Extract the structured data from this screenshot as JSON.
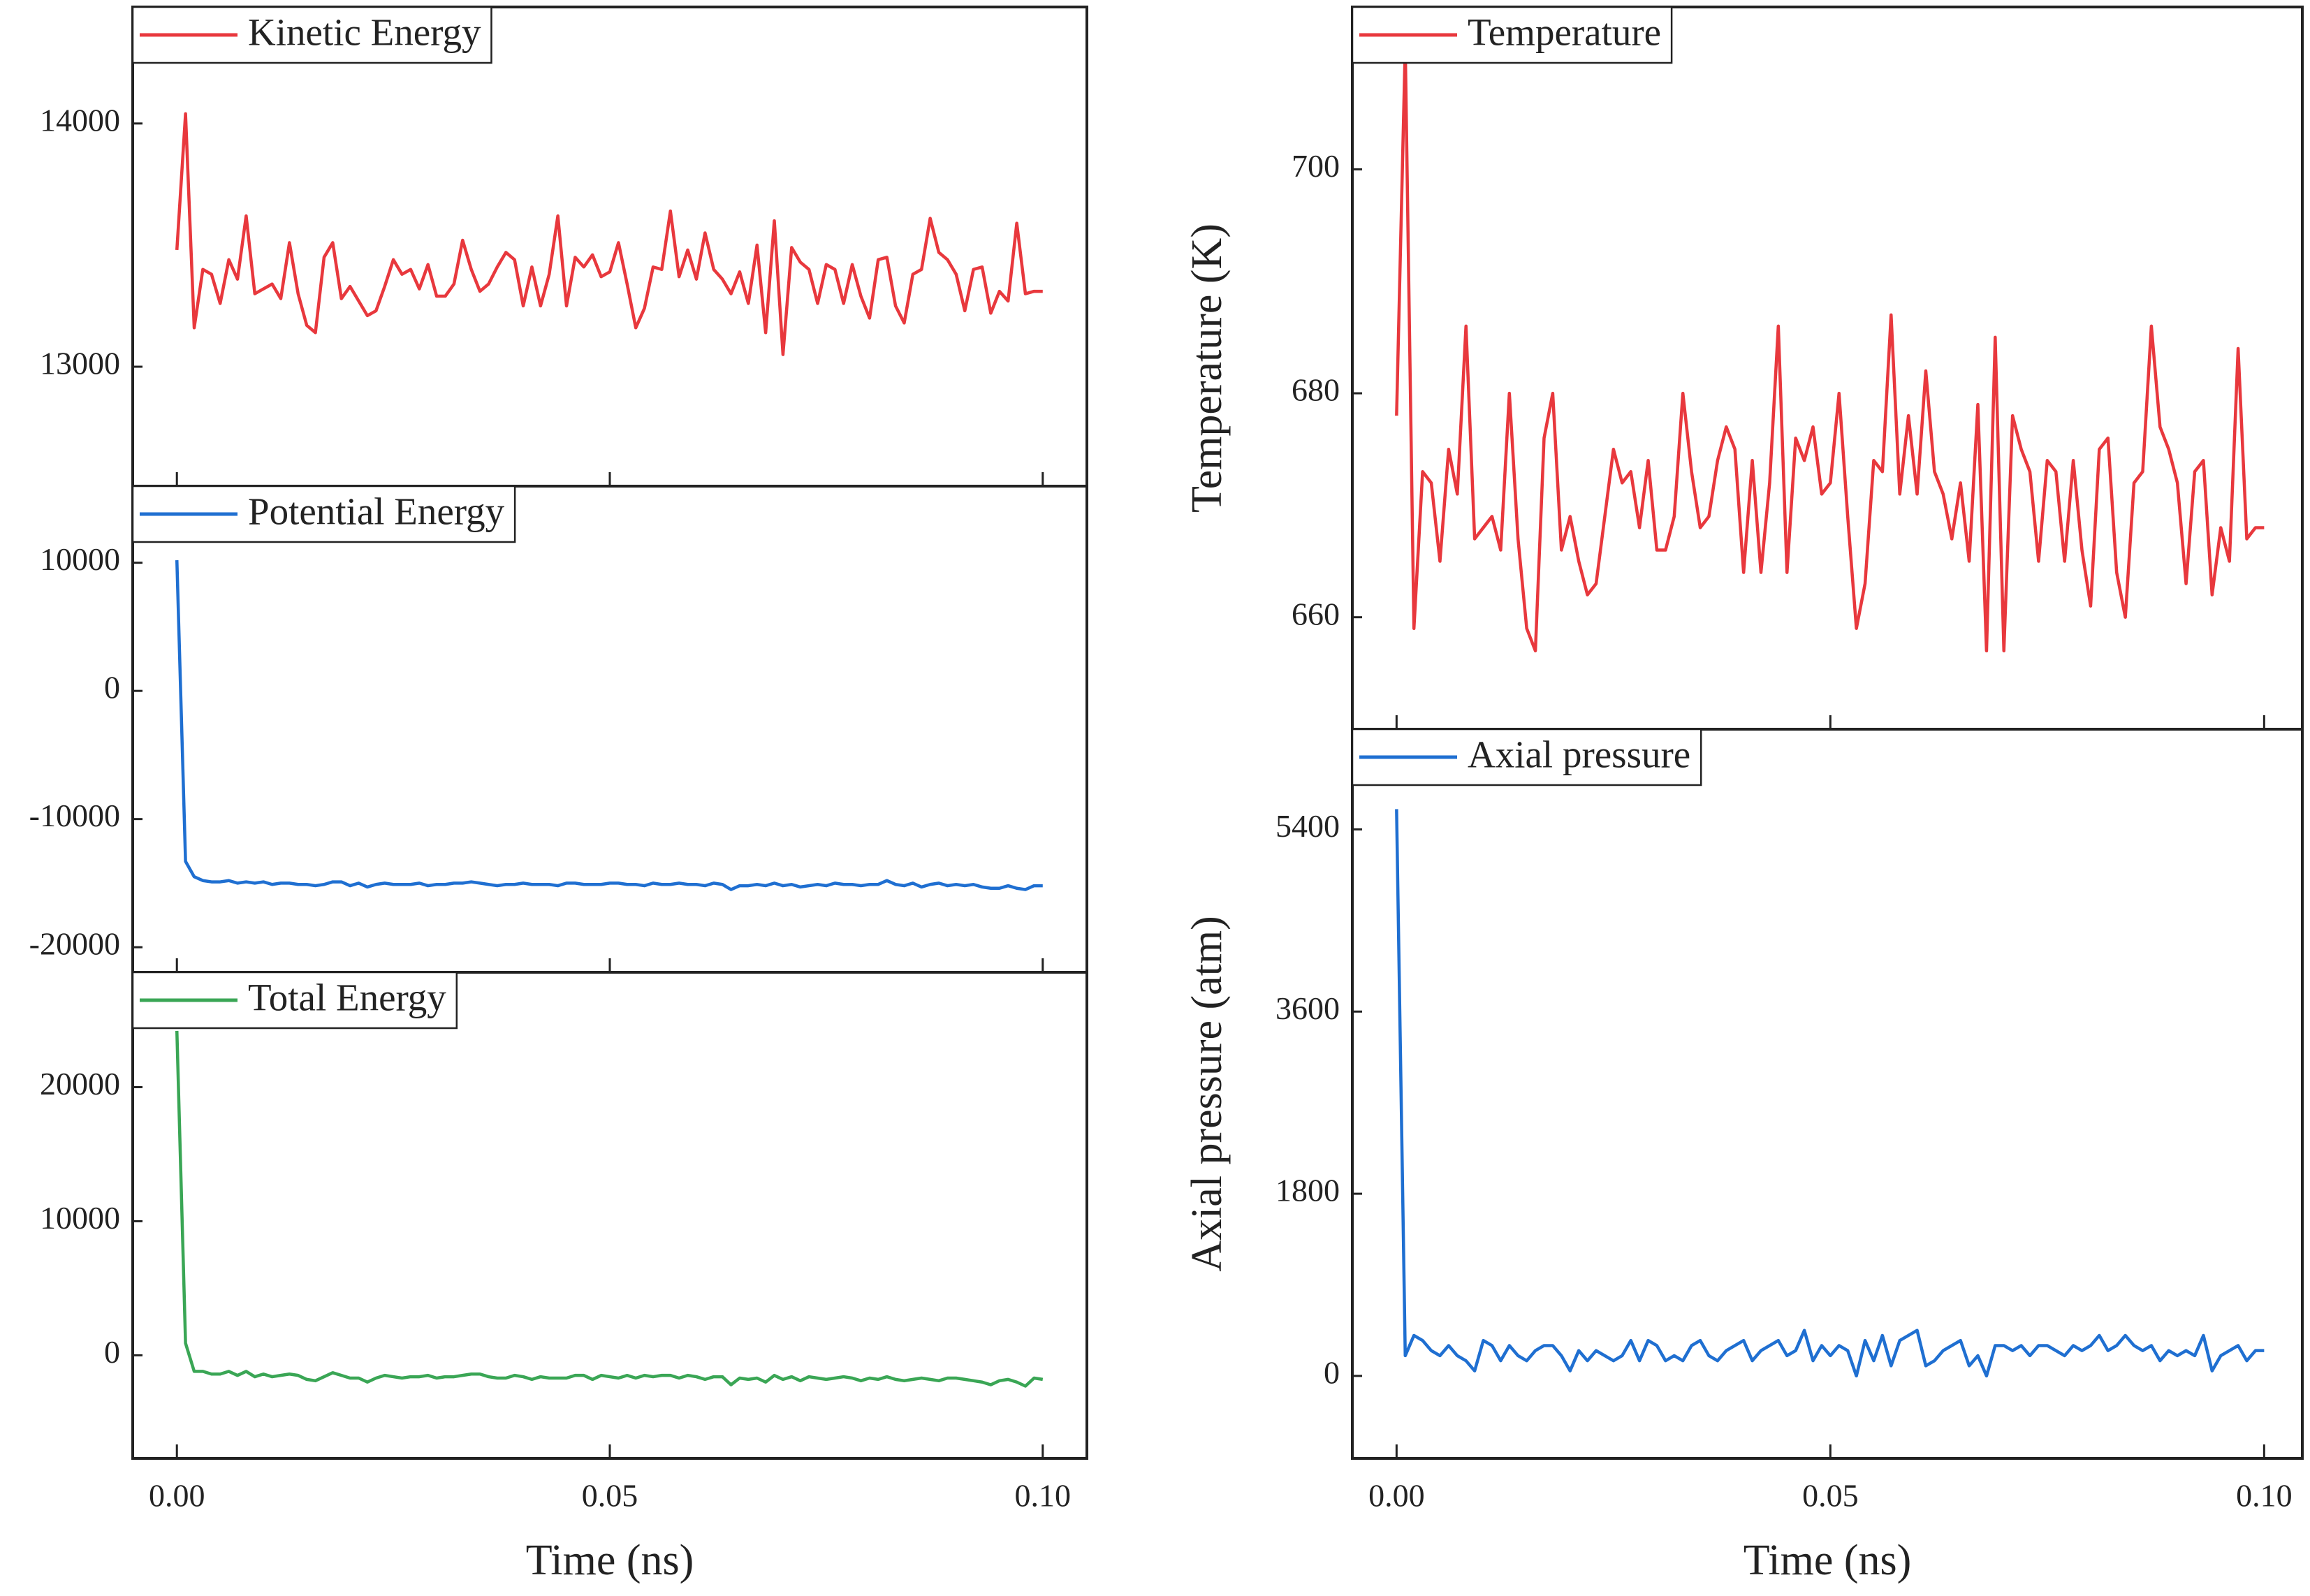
{
  "chart_data": [
    {
      "type": "line",
      "series": [
        {
          "name": "Kinetic Energy",
          "color": "#e8383d",
          "values": [
            13480,
            14040,
            13160,
            13400,
            13380,
            13260,
            13440,
            13360,
            13620,
            13300,
            13320,
            13340,
            13280,
            13510,
            13300,
            13170,
            13140,
            13450,
            13510,
            13280,
            13330,
            13270,
            13210,
            13230,
            13330,
            13440,
            13380,
            13400,
            13320,
            13420,
            13290,
            13290,
            13340,
            13520,
            13400,
            13310,
            13340,
            13410,
            13470,
            13440,
            13250,
            13410,
            13250,
            13380,
            13620,
            13250,
            13450,
            13410,
            13460,
            13370,
            13390,
            13510,
            13340,
            13160,
            13240,
            13410,
            13400,
            13640,
            13370,
            13480,
            13360,
            13550,
            13400,
            13360,
            13300,
            13390,
            13260,
            13500,
            13140,
            13600,
            13050,
            13490,
            13430,
            13400,
            13260,
            13420,
            13400,
            13260,
            13420,
            13290,
            13200,
            13440,
            13450,
            13250,
            13180,
            13380,
            13400,
            13610,
            13470,
            13440,
            13380,
            13230,
            13400,
            13410,
            13220,
            13310,
            13270,
            13590,
            13300,
            13310,
            13310
          ]
        }
      ],
      "x": [
        0,
        0.001,
        0.002,
        0.003,
        0.004,
        0.005,
        0.006,
        0.007,
        0.008,
        0.009,
        0.01,
        0.011,
        0.012,
        0.013,
        0.014,
        0.015,
        0.016,
        0.017,
        0.018,
        0.019,
        0.02,
        0.021,
        0.022,
        0.023,
        0.024,
        0.025,
        0.026,
        0.027,
        0.028,
        0.029,
        0.03,
        0.031,
        0.032,
        0.033,
        0.034,
        0.035,
        0.036,
        0.037,
        0.038,
        0.039,
        0.04,
        0.041,
        0.042,
        0.043,
        0.044,
        0.045,
        0.046,
        0.047,
        0.048,
        0.049,
        0.05,
        0.051,
        0.052,
        0.053,
        0.054,
        0.055,
        0.056,
        0.057,
        0.058,
        0.059,
        0.06,
        0.061,
        0.062,
        0.063,
        0.064,
        0.065,
        0.066,
        0.067,
        0.068,
        0.069,
        0.07,
        0.071,
        0.072,
        0.073,
        0.074,
        0.075,
        0.076,
        0.077,
        0.078,
        0.079,
        0.08,
        0.081,
        0.082,
        0.083,
        0.084,
        0.085,
        0.086,
        0.087,
        0.088,
        0.089,
        0.09,
        0.091,
        0.092,
        0.093,
        0.094,
        0.095,
        0.096,
        0.097,
        0.098,
        0.099,
        0.1
      ],
      "xlim": [
        -0.0051,
        0.1051
      ],
      "xticks": [
        0,
        0.05,
        0.1
      ],
      "ylim": [
        12509,
        14479
      ],
      "yticks": [
        13000,
        14000
      ]
    },
    {
      "type": "line",
      "series": [
        {
          "name": "Potential Energy",
          "color": "#1f6fd1",
          "values": [
            10200,
            -13300,
            -14500,
            -14800,
            -14900,
            -14900,
            -14800,
            -15000,
            -14900,
            -15000,
            -14900,
            -15100,
            -15000,
            -15000,
            -15100,
            -15100,
            -15200,
            -15100,
            -14900,
            -14900,
            -15200,
            -15000,
            -15300,
            -15100,
            -15000,
            -15100,
            -15100,
            -15100,
            -15000,
            -15200,
            -15100,
            -15100,
            -15000,
            -15000,
            -14900,
            -15000,
            -15100,
            -15200,
            -15100,
            -15100,
            -15000,
            -15100,
            -15100,
            -15100,
            -15200,
            -15000,
            -15000,
            -15100,
            -15100,
            -15100,
            -15000,
            -15000,
            -15100,
            -15100,
            -15200,
            -15000,
            -15100,
            -15100,
            -15000,
            -15100,
            -15100,
            -15200,
            -15000,
            -15100,
            -15500,
            -15200,
            -15200,
            -15100,
            -15200,
            -15000,
            -15200,
            -15100,
            -15300,
            -15200,
            -15100,
            -15200,
            -15000,
            -15100,
            -15100,
            -15200,
            -15100,
            -15100,
            -14800,
            -15100,
            -15200,
            -15000,
            -15300,
            -15100,
            -15000,
            -15200,
            -15100,
            -15200,
            -15100,
            -15300,
            -15400,
            -15400,
            -15200,
            -15400,
            -15500,
            -15200,
            -15200
          ]
        }
      ],
      "x": [
        0,
        0.001,
        0.002,
        0.003,
        0.004,
        0.005,
        0.006,
        0.007,
        0.008,
        0.009,
        0.01,
        0.011,
        0.012,
        0.013,
        0.014,
        0.015,
        0.016,
        0.017,
        0.018,
        0.019,
        0.02,
        0.021,
        0.022,
        0.023,
        0.024,
        0.025,
        0.026,
        0.027,
        0.028,
        0.029,
        0.03,
        0.031,
        0.032,
        0.033,
        0.034,
        0.035,
        0.036,
        0.037,
        0.038,
        0.039,
        0.04,
        0.041,
        0.042,
        0.043,
        0.044,
        0.045,
        0.046,
        0.047,
        0.048,
        0.049,
        0.05,
        0.051,
        0.052,
        0.053,
        0.054,
        0.055,
        0.056,
        0.057,
        0.058,
        0.059,
        0.06,
        0.061,
        0.062,
        0.063,
        0.064,
        0.065,
        0.066,
        0.067,
        0.068,
        0.069,
        0.07,
        0.071,
        0.072,
        0.073,
        0.074,
        0.075,
        0.076,
        0.077,
        0.078,
        0.079,
        0.08,
        0.081,
        0.082,
        0.083,
        0.084,
        0.085,
        0.086,
        0.087,
        0.088,
        0.089,
        0.09,
        0.091,
        0.092,
        0.093,
        0.094,
        0.095,
        0.096,
        0.097,
        0.098,
        0.099,
        0.1
      ],
      "xlim": [
        -0.0051,
        0.1051
      ],
      "xticks": [
        0,
        0.05,
        0.1
      ],
      "ylim": [
        -21954,
        15977
      ],
      "yticks": [
        -20000,
        -10000,
        0,
        10000
      ]
    },
    {
      "type": "line",
      "series": [
        {
          "name": "Total Energy",
          "color": "#3aa655",
          "values": [
            24200,
            900,
            -1200,
            -1200,
            -1400,
            -1400,
            -1200,
            -1500,
            -1200,
            -1600,
            -1400,
            -1600,
            -1500,
            -1400,
            -1500,
            -1800,
            -1900,
            -1600,
            -1300,
            -1500,
            -1700,
            -1700,
            -2000,
            -1700,
            -1500,
            -1600,
            -1700,
            -1600,
            -1600,
            -1500,
            -1700,
            -1600,
            -1600,
            -1500,
            -1400,
            -1400,
            -1600,
            -1700,
            -1700,
            -1500,
            -1600,
            -1800,
            -1600,
            -1700,
            -1700,
            -1700,
            -1500,
            -1500,
            -1800,
            -1500,
            -1600,
            -1700,
            -1500,
            -1700,
            -1500,
            -1600,
            -1500,
            -1500,
            -1700,
            -1500,
            -1600,
            -1800,
            -1600,
            -1600,
            -2200,
            -1700,
            -1800,
            -1700,
            -2000,
            -1500,
            -1800,
            -1600,
            -1900,
            -1600,
            -1700,
            -1800,
            -1700,
            -1600,
            -1700,
            -1900,
            -1700,
            -1800,
            -1600,
            -1800,
            -1900,
            -1800,
            -1700,
            -1800,
            -1900,
            -1700,
            -1700,
            -1800,
            -1900,
            -2000,
            -2200,
            -1900,
            -1800,
            -2000,
            -2300,
            -1700,
            -1800
          ]
        }
      ],
      "x": [
        0,
        0.001,
        0.002,
        0.003,
        0.004,
        0.005,
        0.006,
        0.007,
        0.008,
        0.009,
        0.01,
        0.011,
        0.012,
        0.013,
        0.014,
        0.015,
        0.016,
        0.017,
        0.018,
        0.019,
        0.02,
        0.021,
        0.022,
        0.023,
        0.024,
        0.025,
        0.026,
        0.027,
        0.028,
        0.029,
        0.03,
        0.031,
        0.032,
        0.033,
        0.034,
        0.035,
        0.036,
        0.037,
        0.038,
        0.039,
        0.04,
        0.041,
        0.042,
        0.043,
        0.044,
        0.045,
        0.046,
        0.047,
        0.048,
        0.049,
        0.05,
        0.051,
        0.052,
        0.053,
        0.054,
        0.055,
        0.056,
        0.057,
        0.058,
        0.059,
        0.06,
        0.061,
        0.062,
        0.063,
        0.064,
        0.065,
        0.066,
        0.067,
        0.068,
        0.069,
        0.07,
        0.071,
        0.072,
        0.073,
        0.074,
        0.075,
        0.076,
        0.077,
        0.078,
        0.079,
        0.08,
        0.081,
        0.082,
        0.083,
        0.084,
        0.085,
        0.086,
        0.087,
        0.088,
        0.089,
        0.09,
        0.091,
        0.092,
        0.093,
        0.094,
        0.095,
        0.096,
        0.097,
        0.098,
        0.099,
        0.1
      ],
      "xlim": [
        -0.0051,
        0.1051
      ],
      "xticks": [
        {
          "value": 0,
          "label": "0.00"
        },
        {
          "value": 0.05,
          "label": "0.05"
        },
        {
          "value": 0.1,
          "label": "0.10"
        }
      ],
      "ylim": [
        -7692,
        28571
      ],
      "yticks": [
        0,
        10000,
        20000
      ],
      "xlabel": "Time (ns)"
    },
    {
      "type": "line",
      "series": [
        {
          "name": "Temperature",
          "color": "#e8383d",
          "values": [
            678,
            711,
            659,
            673,
            672,
            665,
            675,
            671,
            686,
            667,
            668,
            669,
            666,
            680,
            667,
            659,
            657,
            676,
            680,
            666,
            669,
            665,
            662,
            663,
            669,
            675,
            672,
            673,
            668,
            674,
            666,
            666,
            669,
            680,
            673,
            668,
            669,
            674,
            677,
            675,
            664,
            674,
            664,
            672,
            686,
            664,
            676,
            674,
            677,
            671,
            672,
            680,
            669,
            659,
            663,
            674,
            673,
            687,
            671,
            678,
            671,
            682,
            673,
            671,
            667,
            672,
            665,
            679,
            657,
            685,
            657,
            678,
            675,
            673,
            665,
            674,
            673,
            665,
            674,
            666,
            661,
            675,
            676,
            664,
            660,
            672,
            673,
            686,
            677,
            675,
            672,
            663,
            673,
            674,
            662,
            668,
            665,
            684,
            667,
            668,
            668
          ]
        }
      ],
      "x": [
        0,
        0.001,
        0.002,
        0.003,
        0.004,
        0.005,
        0.006,
        0.007,
        0.008,
        0.009,
        0.01,
        0.011,
        0.012,
        0.013,
        0.014,
        0.015,
        0.016,
        0.017,
        0.018,
        0.019,
        0.02,
        0.021,
        0.022,
        0.023,
        0.024,
        0.025,
        0.026,
        0.027,
        0.028,
        0.029,
        0.03,
        0.031,
        0.032,
        0.033,
        0.034,
        0.035,
        0.036,
        0.037,
        0.038,
        0.039,
        0.04,
        0.041,
        0.042,
        0.043,
        0.044,
        0.045,
        0.046,
        0.047,
        0.048,
        0.049,
        0.05,
        0.051,
        0.052,
        0.053,
        0.054,
        0.055,
        0.056,
        0.057,
        0.058,
        0.059,
        0.06,
        0.061,
        0.062,
        0.063,
        0.064,
        0.065,
        0.066,
        0.067,
        0.068,
        0.069,
        0.07,
        0.071,
        0.072,
        0.073,
        0.074,
        0.075,
        0.076,
        0.077,
        0.078,
        0.079,
        0.08,
        0.081,
        0.082,
        0.083,
        0.084,
        0.085,
        0.086,
        0.087,
        0.088,
        0.089,
        0.09,
        0.091,
        0.092,
        0.093,
        0.094,
        0.095,
        0.096,
        0.097,
        0.098,
        0.099,
        0.1
      ],
      "xlim": [
        -0.0051,
        0.1044
      ],
      "xticks": [
        0,
        0.05,
        0.1
      ],
      "ylim": [
        650,
        714.5
      ],
      "yticks": [
        660,
        680,
        700
      ],
      "ylabel": "Temperature (K)"
    },
    {
      "type": "line",
      "series": [
        {
          "name": "Axial pressure",
          "color": "#1f6fd1",
          "values": [
            5600,
            200,
            400,
            350,
            250,
            200,
            300,
            200,
            150,
            50,
            350,
            300,
            150,
            300,
            200,
            150,
            250,
            300,
            300,
            200,
            50,
            250,
            150,
            250,
            200,
            150,
            200,
            350,
            150,
            350,
            300,
            150,
            200,
            150,
            300,
            350,
            200,
            150,
            250,
            300,
            350,
            150,
            250,
            300,
            350,
            200,
            250,
            450,
            150,
            300,
            200,
            300,
            250,
            0,
            350,
            150,
            400,
            100,
            350,
            400,
            450,
            100,
            150,
            250,
            300,
            350,
            100,
            200,
            0,
            300,
            300,
            250,
            300,
            200,
            300,
            300,
            250,
            200,
            300,
            250,
            300,
            400,
            250,
            300,
            400,
            300,
            250,
            300,
            150,
            250,
            200,
            250,
            200,
            400,
            50,
            200,
            250,
            300,
            150,
            250,
            250
          ]
        }
      ],
      "x": [
        0,
        0.001,
        0.002,
        0.003,
        0.004,
        0.005,
        0.006,
        0.007,
        0.008,
        0.009,
        0.01,
        0.011,
        0.012,
        0.013,
        0.014,
        0.015,
        0.016,
        0.017,
        0.018,
        0.019,
        0.02,
        0.021,
        0.022,
        0.023,
        0.024,
        0.025,
        0.026,
        0.027,
        0.028,
        0.029,
        0.03,
        0.031,
        0.032,
        0.033,
        0.034,
        0.035,
        0.036,
        0.037,
        0.038,
        0.039,
        0.04,
        0.041,
        0.042,
        0.043,
        0.044,
        0.045,
        0.046,
        0.047,
        0.048,
        0.049,
        0.05,
        0.051,
        0.052,
        0.053,
        0.054,
        0.055,
        0.056,
        0.057,
        0.058,
        0.059,
        0.06,
        0.061,
        0.062,
        0.063,
        0.064,
        0.065,
        0.066,
        0.067,
        0.068,
        0.069,
        0.07,
        0.071,
        0.072,
        0.073,
        0.074,
        0.075,
        0.076,
        0.077,
        0.078,
        0.079,
        0.08,
        0.081,
        0.082,
        0.083,
        0.084,
        0.085,
        0.086,
        0.087,
        0.088,
        0.089,
        0.09,
        0.091,
        0.092,
        0.093,
        0.094,
        0.095,
        0.096,
        0.097,
        0.098,
        0.099,
        0.1
      ],
      "xlim": [
        -0.0051,
        0.1044
      ],
      "xticks": [
        {
          "value": 0,
          "label": "0.00"
        },
        {
          "value": 0.05,
          "label": "0.05"
        },
        {
          "value": 0.1,
          "label": "0.10"
        }
      ],
      "ylim": [
        -815,
        6390
      ],
      "yticks": [
        0,
        1800,
        3600,
        5400
      ],
      "xlabel": "Time (ns)",
      "ylabel": "Axial pressure (atm)"
    }
  ]
}
